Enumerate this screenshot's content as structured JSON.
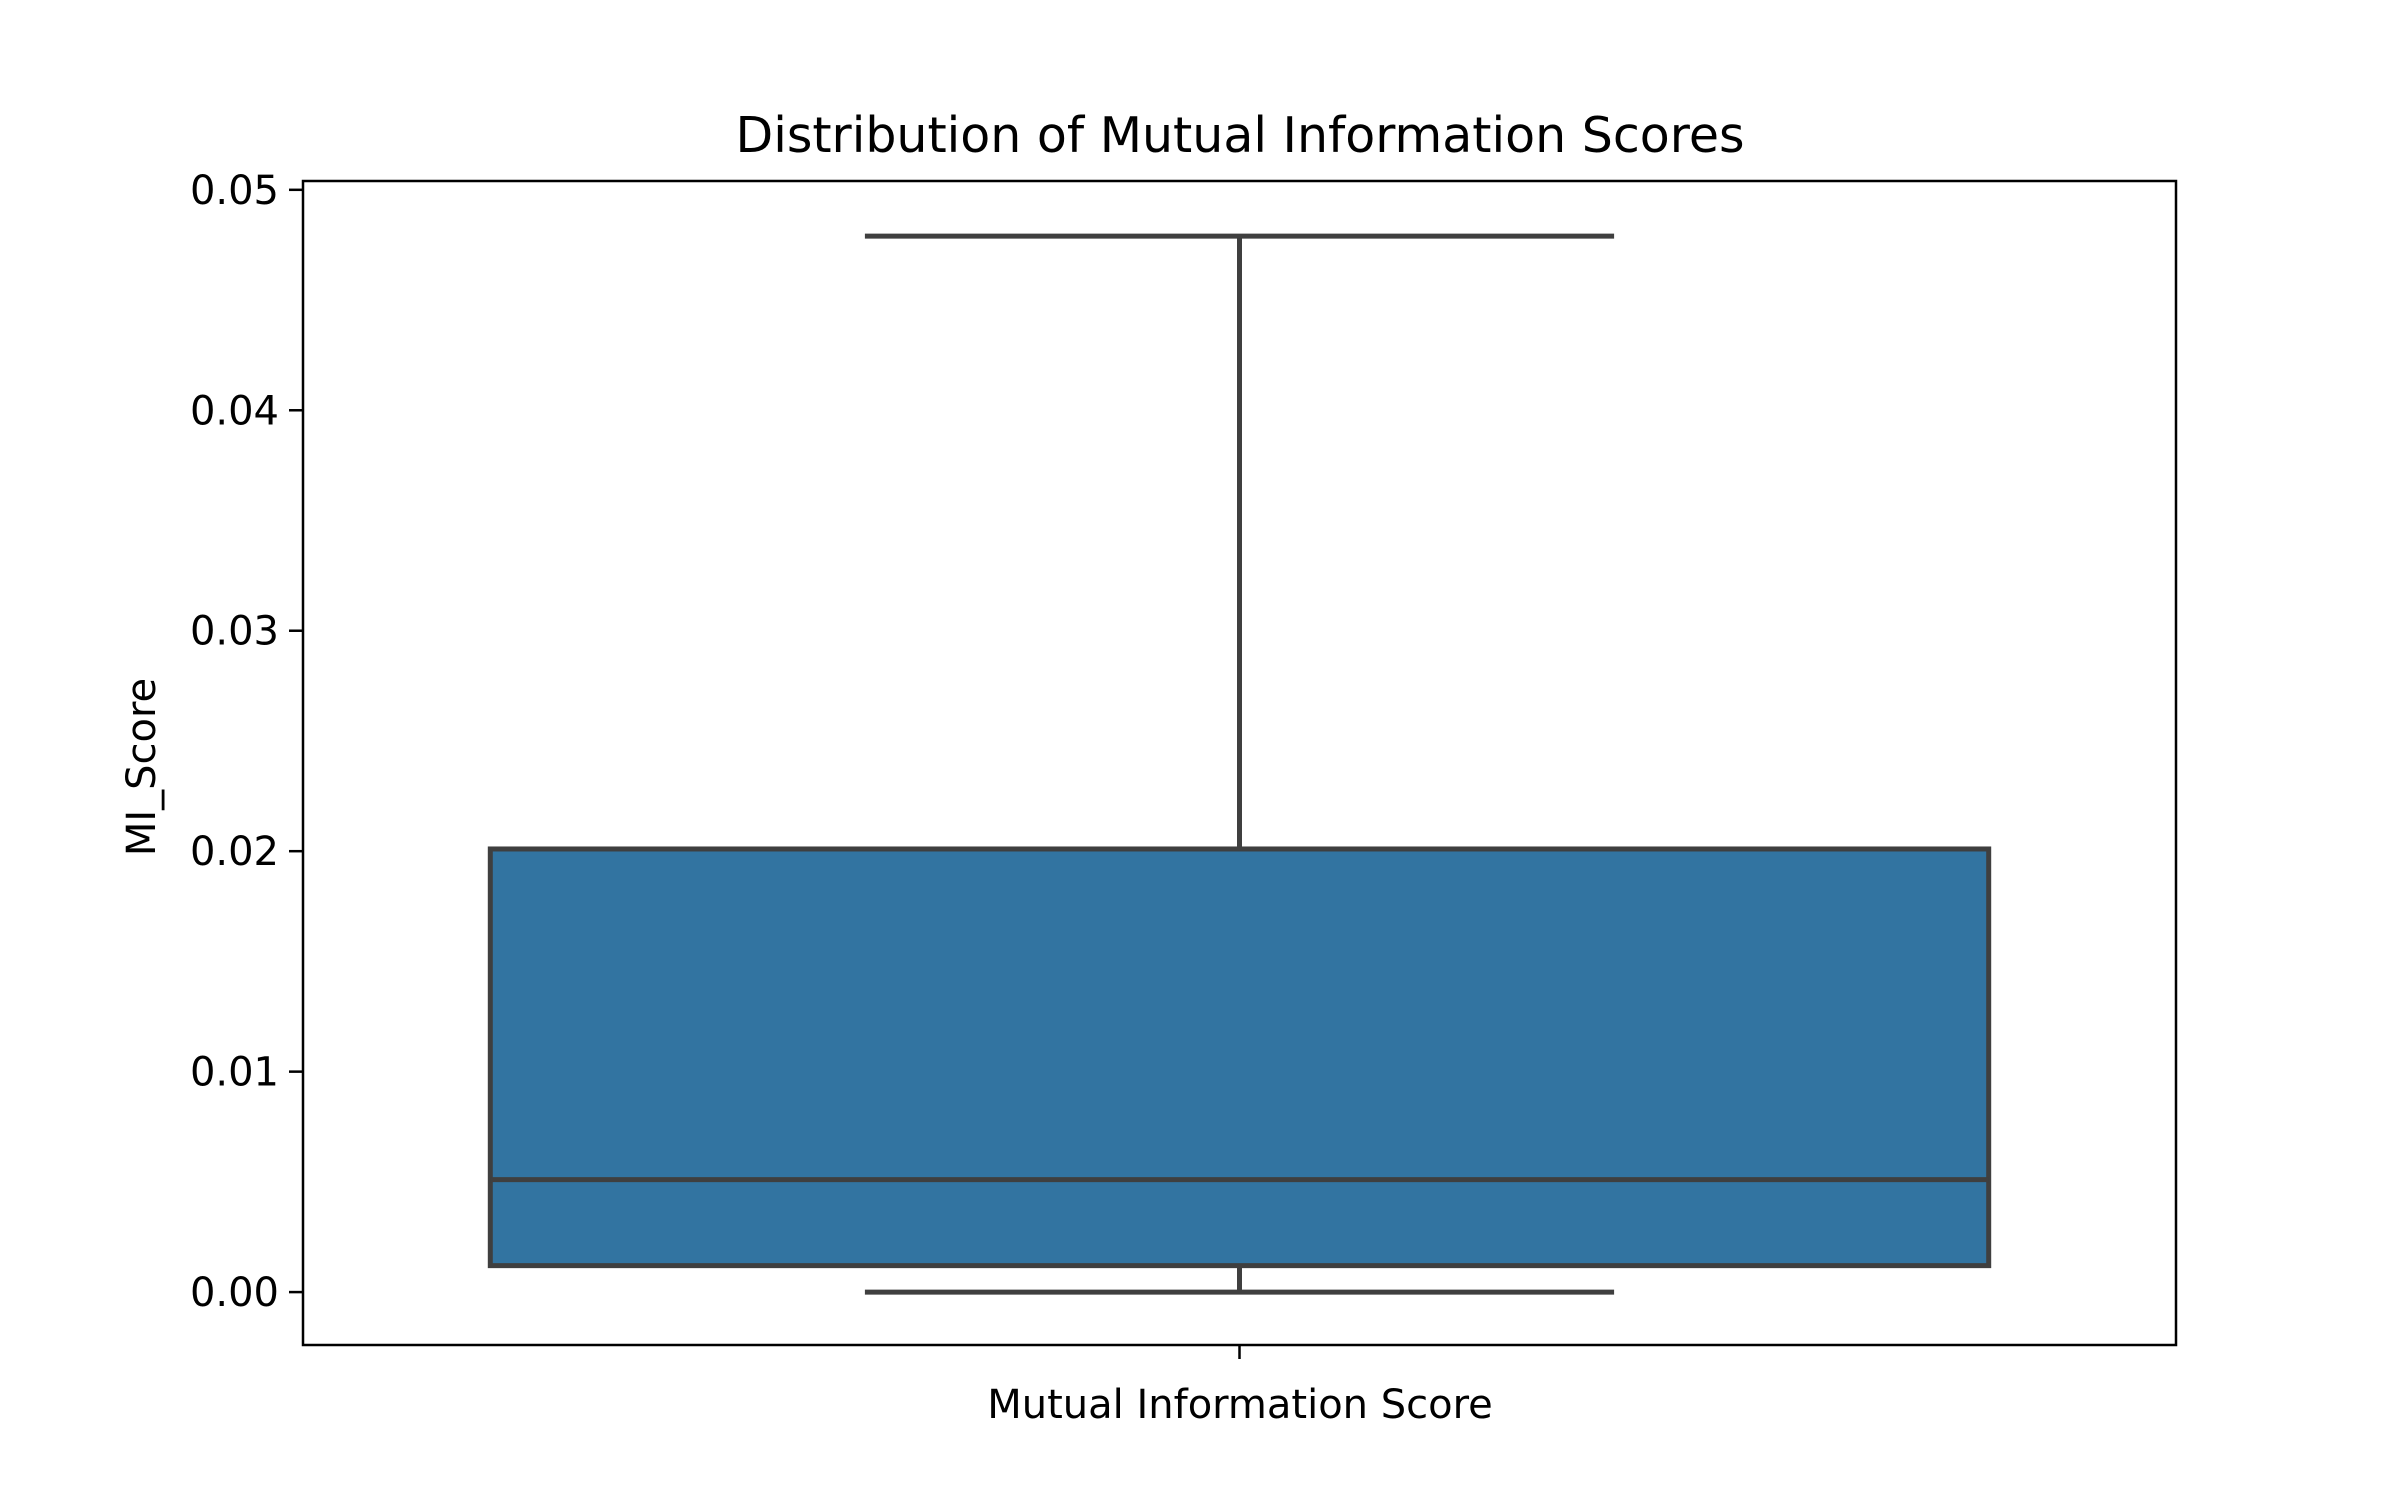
{
  "chart_data": {
    "type": "box",
    "title": "Distribution of Mutual Information Scores",
    "xlabel": "Mutual Information Score",
    "ylabel": "MI_Score",
    "categories": [
      "Mutual Information Score"
    ],
    "show_category_tick_label": false,
    "ylim": [
      -0.0024,
      0.0504
    ],
    "yticks": [
      0.0,
      0.01,
      0.02,
      0.03,
      0.04,
      0.05
    ],
    "ytick_labels": [
      "0.00",
      "0.01",
      "0.02",
      "0.03",
      "0.04",
      "0.05"
    ],
    "boxes": [
      {
        "category": "Mutual Information Score",
        "whisker_low": 0.0,
        "q1": 0.0012,
        "median": 0.0051,
        "q3": 0.0201,
        "whisker_high": 0.0479
      }
    ],
    "grid": false,
    "colors": {
      "box_fill": "#3274a1",
      "box_edge": "#3f3f3f",
      "axes": "#000000"
    }
  }
}
